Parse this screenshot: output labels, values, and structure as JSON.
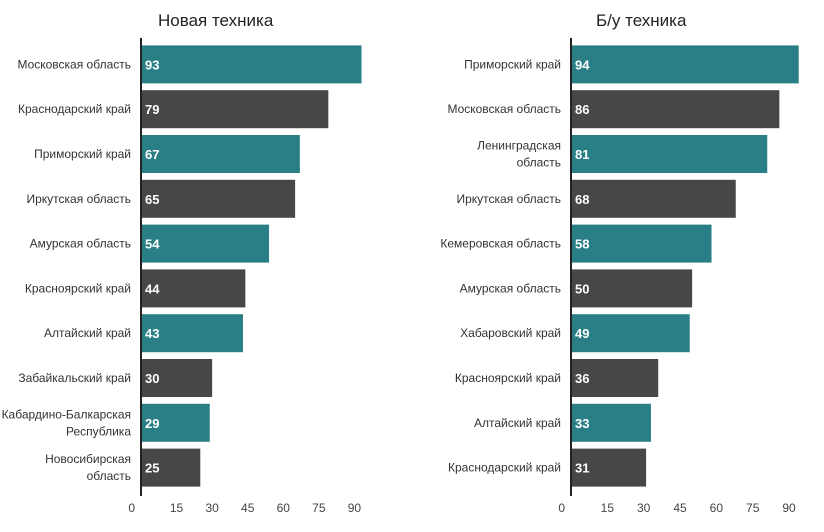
{
  "colors": {
    "teal": "#2a7f86",
    "dark": "#474747",
    "axis": "#222222"
  },
  "chart_data": [
    {
      "type": "bar",
      "orientation": "horizontal",
      "title": "Новая техника",
      "categories": [
        "Московская область",
        "Краснодарский край",
        "Приморский край",
        "Иркутская область",
        "Амурская область",
        "Красноярский край",
        "Алтайский край",
        "Забайкальский край",
        "Кабардино-Балкарская Республика",
        "Новосибирская область"
      ],
      "category_lines": [
        [
          "Московская область"
        ],
        [
          "Краснодарский край"
        ],
        [
          "Приморский край"
        ],
        [
          "Иркутская область"
        ],
        [
          "Амурская область"
        ],
        [
          "Красноярский край"
        ],
        [
          "Алтайский край"
        ],
        [
          "Забайкальский край"
        ],
        [
          "Кабардино-Балкарская",
          "Республика"
        ],
        [
          "Новосибирская",
          "область"
        ]
      ],
      "values": [
        93,
        79,
        67,
        65,
        54,
        44,
        43,
        30,
        29,
        25
      ],
      "value_labels": [
        "93",
        "79",
        "67",
        "65",
        "54",
        "44",
        "43",
        "30",
        "29",
        "25"
      ],
      "xlim": [
        0,
        97
      ],
      "ticks": [
        0,
        15,
        30,
        45,
        60,
        75,
        90
      ],
      "tick_labels": [
        "0",
        "15",
        "30",
        "45",
        "60",
        "75",
        "90"
      ],
      "xlabel": "",
      "ylabel": "",
      "grid": false
    },
    {
      "type": "bar",
      "orientation": "horizontal",
      "title": "Б/у техника",
      "categories": [
        "Приморский край",
        "Московская область",
        "Ленинградская область",
        "Иркутская область",
        "Кемеровская область",
        "Амурская область",
        "Хабаровский край",
        "Красноярский край",
        "Алтайский край",
        "Краснодарский край"
      ],
      "category_lines": [
        [
          "Приморский край"
        ],
        [
          "Московская область"
        ],
        [
          "Ленинградская",
          "область"
        ],
        [
          "Иркутская область"
        ],
        [
          "Кемеровская область"
        ],
        [
          "Амурская область"
        ],
        [
          "Хабаровский край"
        ],
        [
          "Красноярский край"
        ],
        [
          "Алтайский край"
        ],
        [
          "Краснодарский край"
        ]
      ],
      "values": [
        94,
        86,
        81,
        68,
        58,
        50,
        49,
        36,
        33,
        31
      ],
      "value_labels": [
        "94",
        "86",
        "81",
        "68",
        "58",
        "50",
        "49",
        "36",
        "33",
        "31"
      ],
      "xlim": [
        0,
        97
      ],
      "ticks": [
        0,
        15,
        30,
        45,
        60,
        75,
        90
      ],
      "tick_labels": [
        "0",
        "15",
        "30",
        "45",
        "60",
        "75",
        "90"
      ],
      "xlabel": "",
      "ylabel": "",
      "grid": false
    }
  ]
}
